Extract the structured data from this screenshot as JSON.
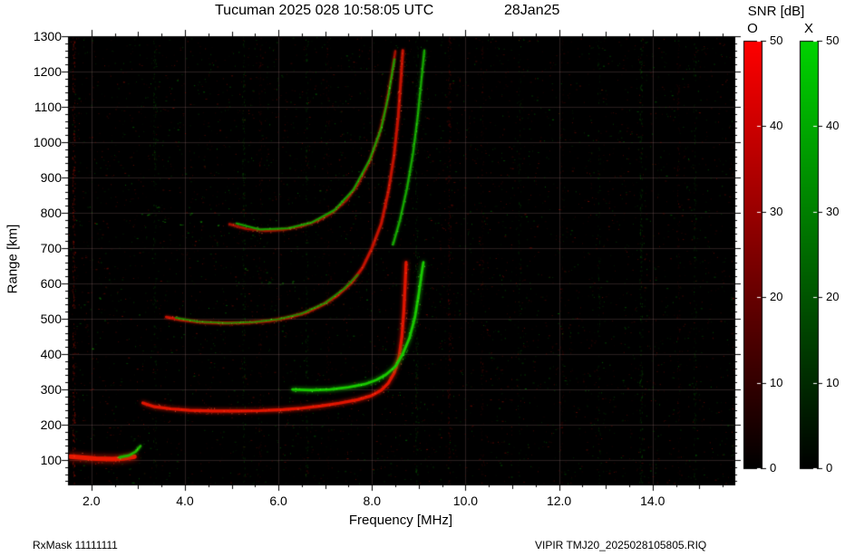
{
  "title": "Tucuman 2025 028 10:58:05 UTC",
  "date_label": "28Jan25",
  "footer": {
    "left": "RxMask 11111111",
    "right": "VIPIR  TMJ20_2025028105805.RIQ"
  },
  "colorbar": {
    "title": "SNR [dB]",
    "o_label": "O",
    "x_label": "X",
    "ticks": [
      0,
      10,
      20,
      30,
      40,
      50
    ],
    "max": 50,
    "o_color": "#ff0000",
    "x_color": "#00d400"
  },
  "chart_data": {
    "type": "heatmap",
    "subtype": "ionogram",
    "title": "Tucuman 2025 028 10:58:05 UTC 28Jan25",
    "xlabel": "Frequency [MHz]",
    "ylabel": "Range [km]",
    "xlim": [
      1.5,
      15.75
    ],
    "ylim": [
      31,
      1300
    ],
    "xticks": [
      2,
      4,
      6,
      8,
      10,
      12,
      14
    ],
    "xtick_labels": [
      "2.0",
      "4.0",
      "6.0",
      "8.0",
      "10.0",
      "12.0",
      "14.0"
    ],
    "yticks": [
      100,
      200,
      300,
      400,
      500,
      600,
      700,
      800,
      900,
      1000,
      1100,
      1200,
      1300
    ],
    "ytick_labels": [
      "100",
      "200",
      "300",
      "400",
      "500",
      "600",
      "700",
      "800",
      "900",
      "1000",
      "1100",
      "1200",
      "1300"
    ],
    "grid": true,
    "legend": "SNR [dB] colorbars, O-mode red / X-mode green, range 0-50 dB",
    "series": [
      {
        "name": "E-layer trace O-mode",
        "mode": "O",
        "color": "#e81800",
        "width": 5,
        "glow": 6,
        "points": [
          [
            1.55,
            110
          ],
          [
            1.8,
            107
          ],
          [
            2.1,
            104
          ],
          [
            2.45,
            103
          ],
          [
            2.7,
            105
          ],
          [
            2.92,
            110
          ]
        ]
      },
      {
        "name": "E-layer tail X-mode",
        "mode": "X",
        "color": "#1fb400",
        "width": 2.5,
        "glow": 3,
        "points": [
          [
            2.6,
            108
          ],
          [
            2.8,
            113
          ],
          [
            2.95,
            124
          ],
          [
            3.05,
            140
          ]
        ]
      },
      {
        "name": "F-layer 1st hop O-mode",
        "mode": "O",
        "color": "#e01500",
        "width": 3.2,
        "glow": 4,
        "points": [
          [
            3.1,
            262
          ],
          [
            3.35,
            251
          ],
          [
            3.7,
            245
          ],
          [
            4.1,
            241
          ],
          [
            4.6,
            239
          ],
          [
            5.1,
            239
          ],
          [
            5.6,
            240
          ],
          [
            6.1,
            243
          ],
          [
            6.5,
            247
          ],
          [
            6.9,
            253
          ],
          [
            7.3,
            261
          ],
          [
            7.7,
            271
          ],
          [
            8.0,
            283
          ],
          [
            8.2,
            298
          ],
          [
            8.35,
            318
          ],
          [
            8.48,
            348
          ],
          [
            8.58,
            392
          ],
          [
            8.64,
            450
          ],
          [
            8.68,
            520
          ],
          [
            8.71,
            600
          ],
          [
            8.73,
            660
          ]
        ]
      },
      {
        "name": "F-layer 1st hop X-mode",
        "mode": "X",
        "color": "#19c800",
        "width": 2.8,
        "glow": 4,
        "points": [
          [
            6.3,
            300
          ],
          [
            6.7,
            298
          ],
          [
            7.1,
            300
          ],
          [
            7.5,
            306
          ],
          [
            7.85,
            315
          ],
          [
            8.1,
            327
          ],
          [
            8.3,
            342
          ],
          [
            8.5,
            365
          ],
          [
            8.65,
            398
          ],
          [
            8.8,
            445
          ],
          [
            8.92,
            505
          ],
          [
            9.0,
            570
          ],
          [
            9.07,
            635
          ],
          [
            9.1,
            660
          ]
        ]
      },
      {
        "name": "F-layer 2nd hop O-mode",
        "mode": "O",
        "color": "#c41200",
        "width": 2.8,
        "glow": 3,
        "points": [
          [
            3.6,
            505
          ],
          [
            3.9,
            497
          ],
          [
            4.3,
            491
          ],
          [
            4.8,
            488
          ],
          [
            5.3,
            489
          ],
          [
            5.8,
            494
          ],
          [
            6.2,
            503
          ],
          [
            6.6,
            518
          ],
          [
            6.95,
            540
          ],
          [
            7.25,
            565
          ],
          [
            7.55,
            600
          ],
          [
            7.8,
            645
          ],
          [
            8.0,
            700
          ],
          [
            8.2,
            770
          ],
          [
            8.35,
            860
          ],
          [
            8.47,
            960
          ],
          [
            8.56,
            1070
          ],
          [
            8.62,
            1180
          ],
          [
            8.66,
            1260
          ]
        ]
      },
      {
        "name": "F-layer 2nd hop X-mode",
        "mode": "X",
        "color": "#17b000",
        "width": 2.2,
        "glow": 3,
        "alpha": 0.9,
        "points": [
          [
            8.45,
            710
          ],
          [
            8.6,
            780
          ],
          [
            8.75,
            870
          ],
          [
            8.88,
            970
          ],
          [
            8.98,
            1075
          ],
          [
            9.06,
            1180
          ],
          [
            9.12,
            1260
          ]
        ]
      },
      {
        "name": "F-layer 3rd hop O-mode",
        "mode": "O",
        "color": "#a81000",
        "width": 2.4,
        "glow": 3,
        "alpha": 0.95,
        "points": [
          [
            4.95,
            768
          ],
          [
            5.3,
            755
          ],
          [
            5.7,
            749
          ],
          [
            6.1,
            752
          ],
          [
            6.5,
            762
          ],
          [
            6.85,
            778
          ],
          [
            7.15,
            800
          ],
          [
            7.45,
            835
          ],
          [
            7.7,
            880
          ],
          [
            7.95,
            945
          ],
          [
            8.15,
            1020
          ],
          [
            8.3,
            1100
          ],
          [
            8.42,
            1190
          ],
          [
            8.5,
            1258
          ]
        ]
      },
      {
        "name": "F-layer 3rd hop X-mode",
        "mode": "X",
        "color": "#15a800",
        "width": 1.8,
        "glow": 2,
        "alpha": 0.85,
        "points": [
          [
            5.1,
            770
          ],
          [
            5.6,
            753
          ],
          [
            6.2,
            756
          ],
          [
            6.7,
            772
          ],
          [
            7.2,
            808
          ],
          [
            7.6,
            865
          ],
          [
            7.95,
            950
          ],
          [
            8.2,
            1040
          ],
          [
            8.35,
            1130
          ],
          [
            8.48,
            1235
          ]
        ]
      },
      {
        "name": "2nd hop green speckle",
        "mode": "X",
        "color": "#149800",
        "width": 1.6,
        "glow": 2,
        "alpha": 0.8,
        "points": [
          [
            3.8,
            503
          ],
          [
            4.3,
            492
          ],
          [
            4.9,
            488
          ],
          [
            5.5,
            491
          ],
          [
            6.0,
            499
          ],
          [
            6.5,
            515
          ],
          [
            7.0,
            545
          ],
          [
            7.4,
            585
          ],
          [
            7.7,
            625
          ]
        ]
      }
    ],
    "dot_series": [
      {
        "name": "scattered X-mode echoes",
        "color": "#16a000",
        "size": 2,
        "alpha": 0.6,
        "points": [
          [
            3.2,
            792
          ],
          [
            3.55,
            778
          ],
          [
            3.9,
            764
          ],
          [
            4.3,
            772
          ],
          [
            4.7,
            762
          ],
          [
            5.0,
            770
          ],
          [
            3.4,
            815
          ],
          [
            4.1,
            800
          ],
          [
            5.8,
            602
          ],
          [
            6.05,
            598
          ],
          [
            6.3,
            606
          ],
          [
            2.2,
            560
          ],
          [
            2.05,
            420
          ],
          [
            5.3,
            640
          ]
        ]
      },
      {
        "name": "scattered O-mode echoes",
        "color": "#8a0f00",
        "size": 2,
        "alpha": 0.5,
        "points": [
          [
            9.6,
            900
          ],
          [
            9.65,
            1000
          ],
          [
            9.7,
            820
          ],
          [
            9.62,
            1100
          ],
          [
            2.0,
            300
          ],
          [
            1.9,
            480
          ],
          [
            2.3,
            640
          ],
          [
            10.1,
            250
          ],
          [
            11.4,
            700
          ]
        ]
      }
    ],
    "rfi_stripes": [
      {
        "f": 1.62,
        "color": "#c01500",
        "alpha": 0.5,
        "count": 320
      },
      {
        "f": 3.35,
        "color": "#11a000",
        "alpha": 0.28,
        "count": 160
      },
      {
        "f": 5.25,
        "color": "#11a000",
        "alpha": 0.3,
        "count": 180
      },
      {
        "f": 5.6,
        "color": "#9a1000",
        "alpha": 0.25,
        "count": 140
      },
      {
        "f": 6.6,
        "color": "#11a000",
        "alpha": 0.26,
        "count": 150
      },
      {
        "f": 7.05,
        "color": "#9a1000",
        "alpha": 0.22,
        "count": 130
      },
      {
        "f": 8.95,
        "color": "#11a000",
        "alpha": 0.3,
        "count": 200
      },
      {
        "f": 9.65,
        "color": "#b01300",
        "alpha": 0.3,
        "count": 220
      },
      {
        "f": 10.35,
        "color": "#9a1000",
        "alpha": 0.22,
        "count": 140
      },
      {
        "f": 11.15,
        "color": "#11a000",
        "alpha": 0.2,
        "count": 120
      },
      {
        "f": 12.05,
        "color": "#9a1000",
        "alpha": 0.2,
        "count": 130
      },
      {
        "f": 12.85,
        "color": "#11a000",
        "alpha": 0.2,
        "count": 120
      },
      {
        "f": 13.75,
        "color": "#13b000",
        "alpha": 0.3,
        "count": 200
      },
      {
        "f": 14.55,
        "color": "#9a1000",
        "alpha": 0.22,
        "count": 140
      },
      {
        "f": 14.9,
        "color": "#11a000",
        "alpha": 0.25,
        "count": 150
      }
    ],
    "noise": {
      "count": 5200,
      "red_ratio": 0.6
    }
  }
}
